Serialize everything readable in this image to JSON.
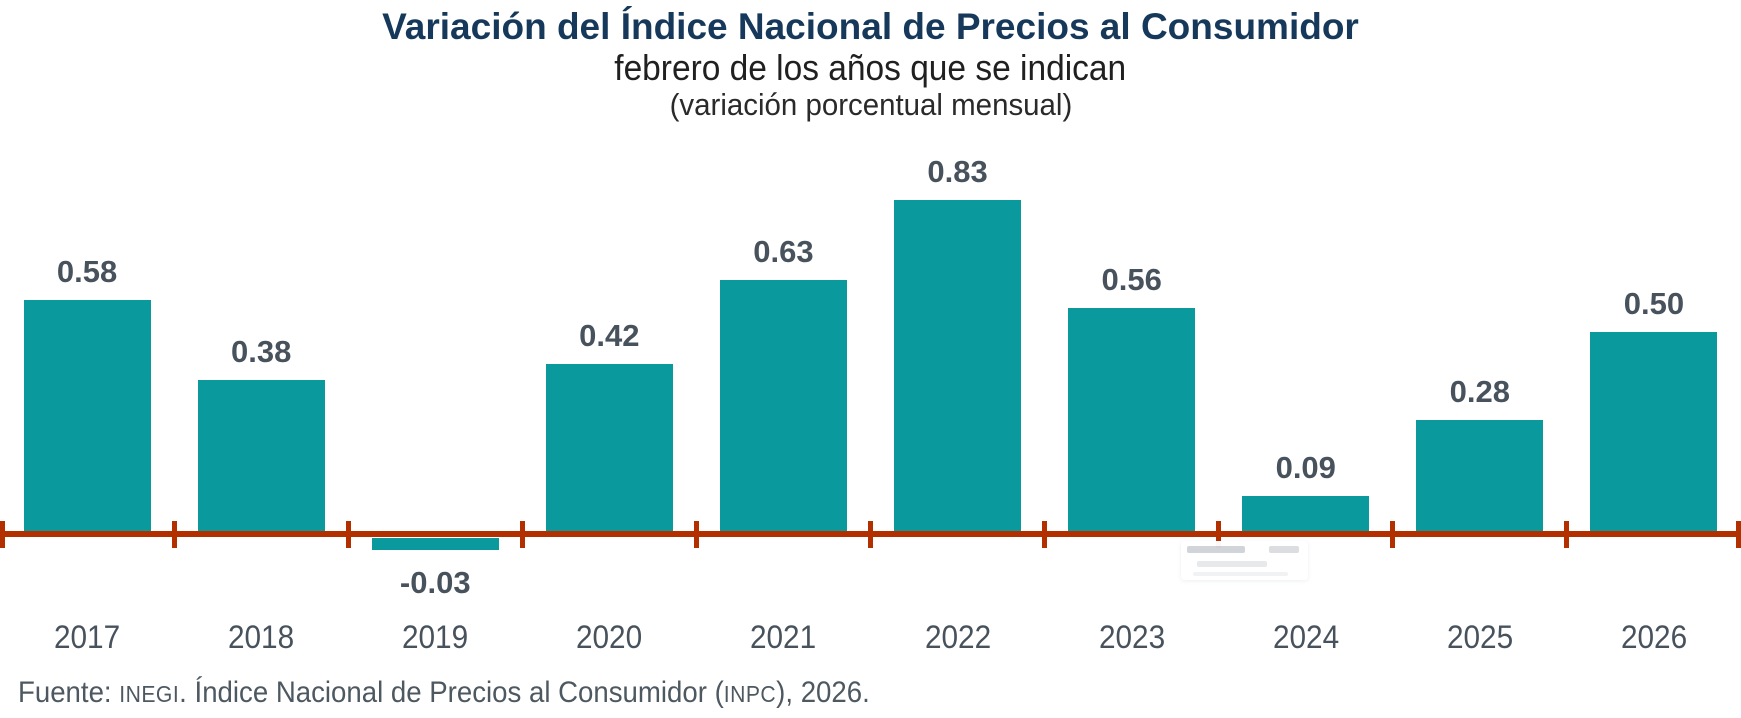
{
  "header": {
    "title": "Variación del Índice Nacional de Precios al Consumidor",
    "subtitle": "febrero de los años que se indican",
    "note": "(variación porcentual mensual)"
  },
  "chart_data": {
    "type": "bar",
    "title": "Variación del Índice Nacional de Precios al Consumidor",
    "subtitle": "febrero de los años que se indican",
    "unit_note": "(variación porcentual mensual)",
    "categories": [
      "2017",
      "2018",
      "2019",
      "2020",
      "2021",
      "2022",
      "2023",
      "2024",
      "2025",
      "2026"
    ],
    "values": [
      0.58,
      0.38,
      -0.03,
      0.42,
      0.63,
      0.83,
      0.56,
      0.09,
      0.28,
      0.5
    ],
    "value_labels": [
      "0.58",
      "0.38",
      "-0.03",
      "0.42",
      "0.63",
      "0.83",
      "0.56",
      "0.09",
      "0.28",
      "0.50"
    ],
    "xlabel": "",
    "ylabel": "",
    "ylim": [
      -0.1,
      0.95
    ],
    "grid": false,
    "legend": false,
    "data_labels": true,
    "bar_color": "#0a9a9e",
    "axis_color": "#b23000",
    "label_color": "#47525c"
  },
  "footer": {
    "prefix": "Fuente: ",
    "source_acronym": "INEGI",
    "mid": ". Índice Nacional de Precios al Consumidor (",
    "index_acronym": "INPC",
    "suffix": "), 2026."
  },
  "colors": {
    "title": "#16395b",
    "subtitle": "#202020",
    "bar": "#0a9a9e",
    "axis": "#b23000",
    "value_text": "#47525c"
  }
}
